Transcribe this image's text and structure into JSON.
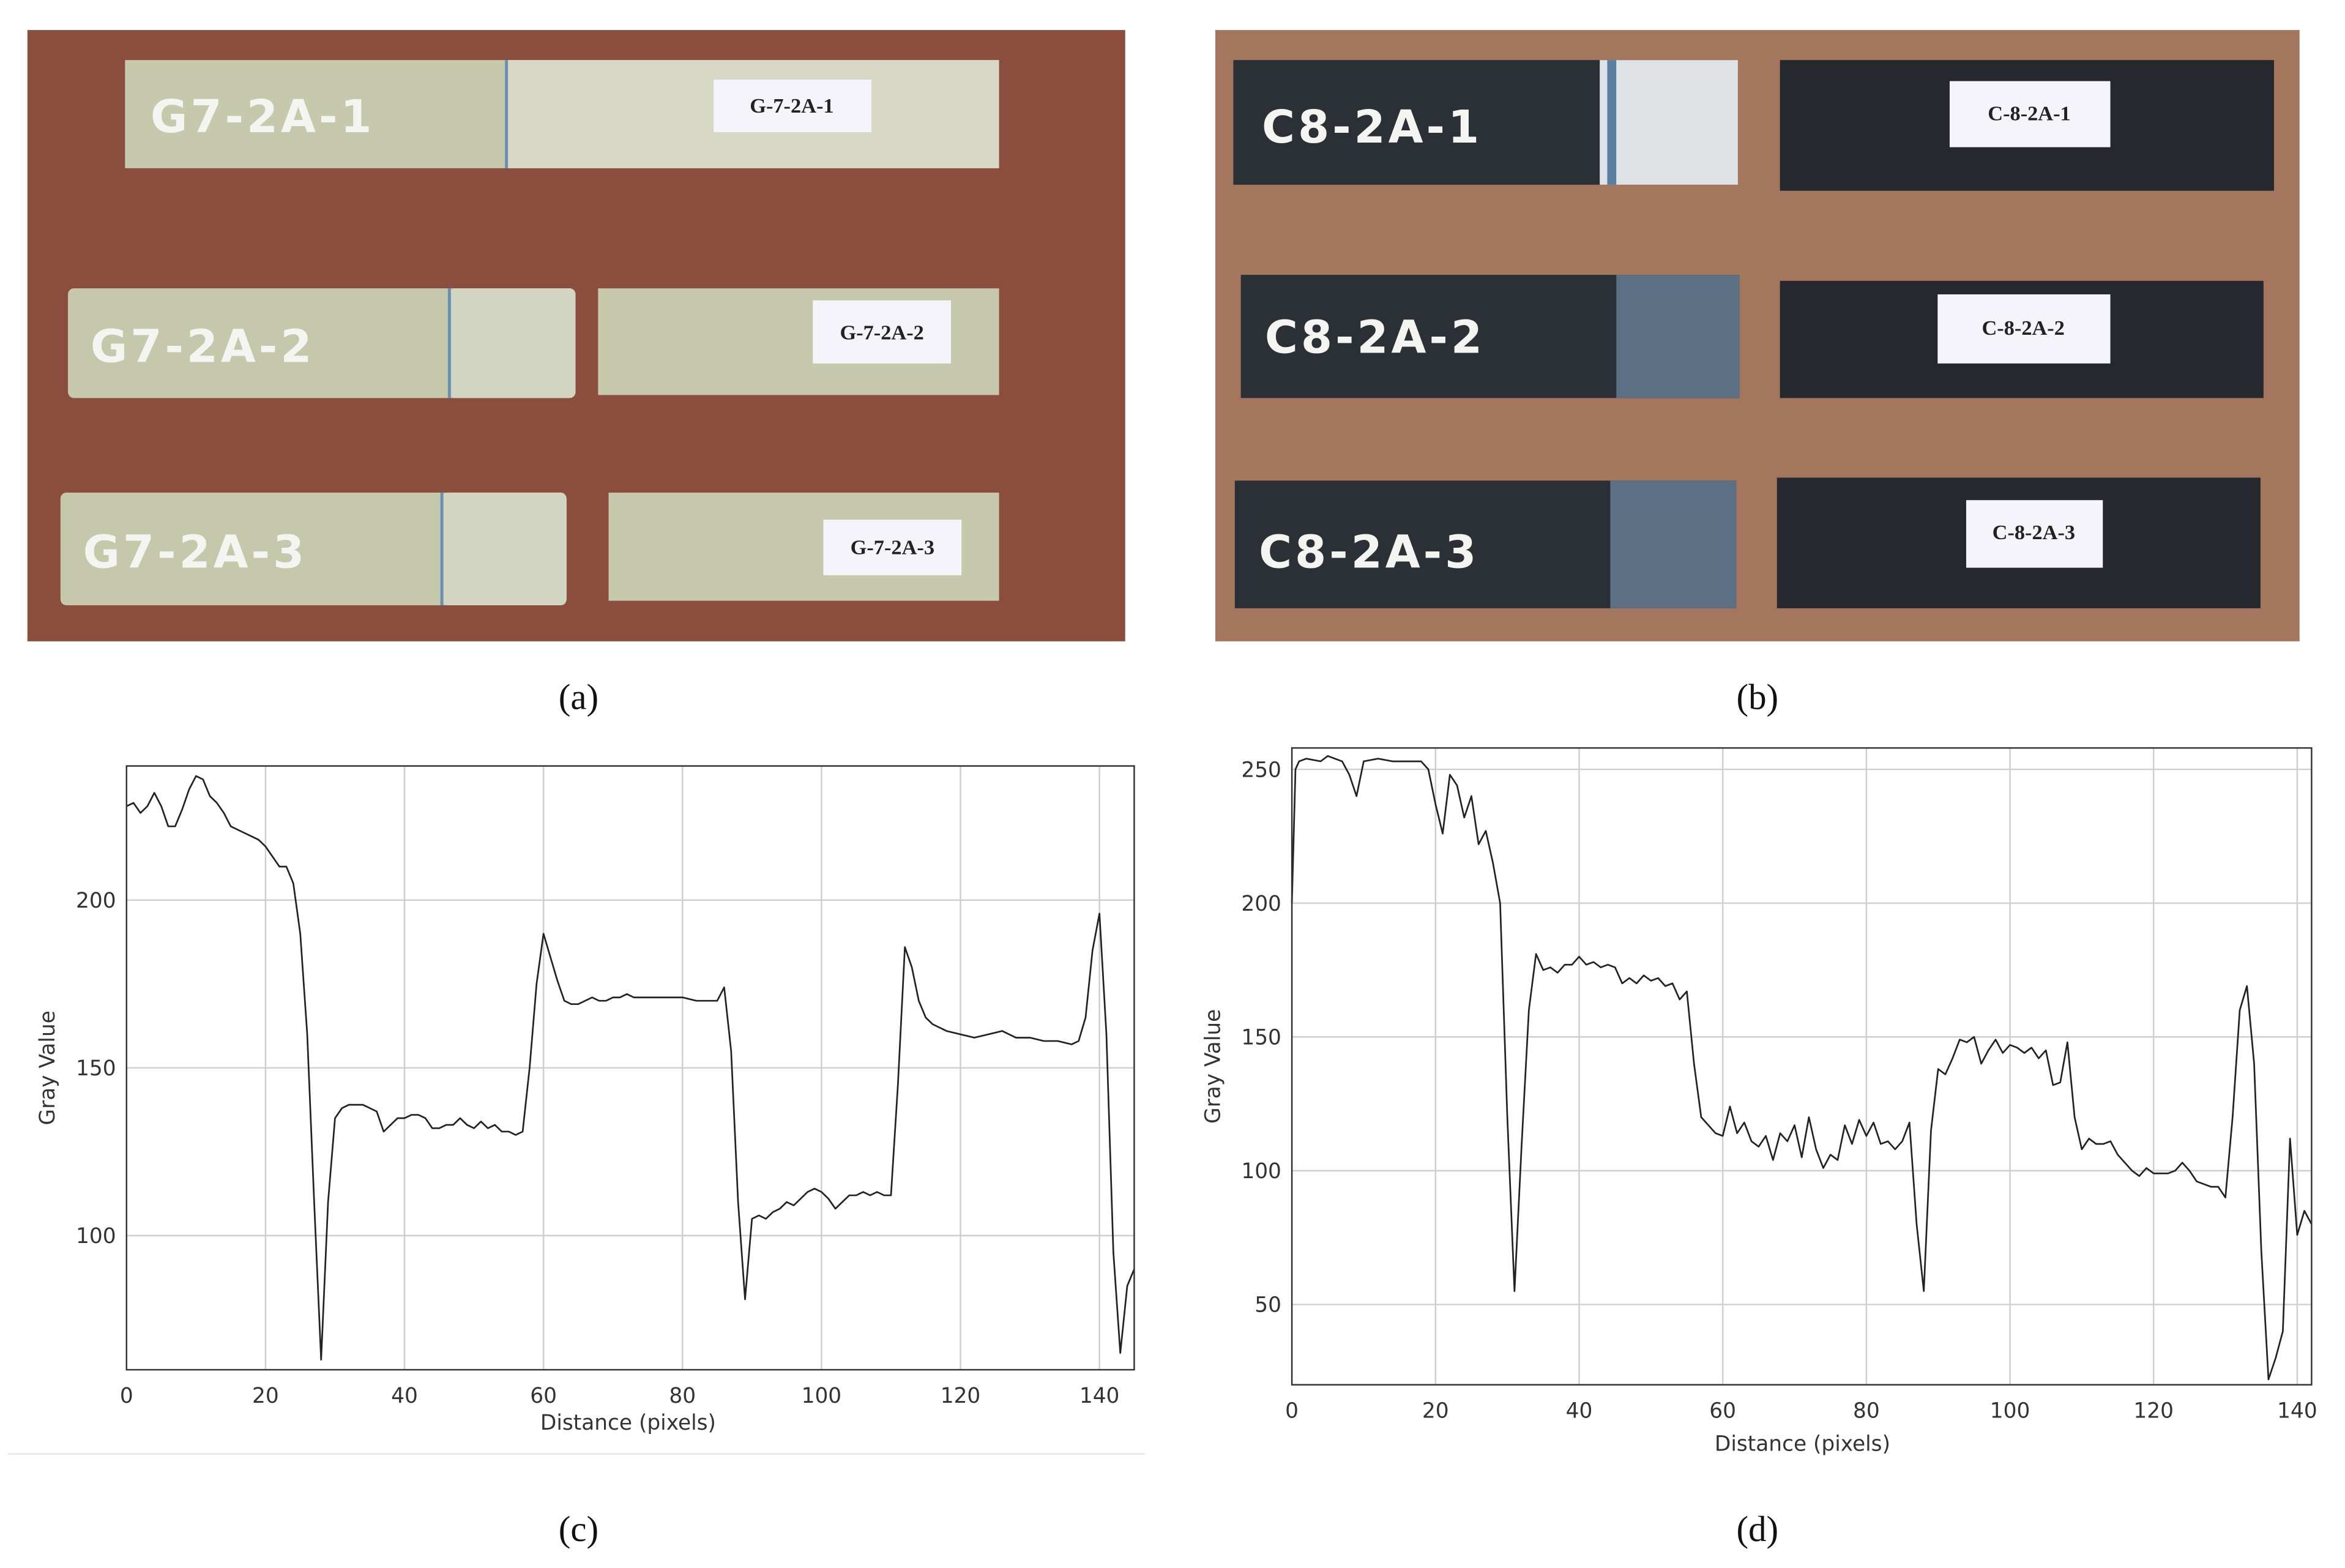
{
  "photo_a": {
    "markings": [
      "G7-2A-1",
      "G7-2A-2",
      "G7-2A-3"
    ],
    "labels": [
      "G-7-2A-1",
      "G-7-2A-2",
      "G-7-2A-3"
    ]
  },
  "photo_b": {
    "markings": [
      "C8-2A-1",
      "C8-2A-2",
      "C8-2A-3"
    ],
    "labels": [
      "C-8-2A-1",
      "C-8-2A-2",
      "C-8-2A-3"
    ]
  },
  "captions": [
    "(a)",
    "(b)",
    "(c)",
    "(d)"
  ],
  "chart_data": [
    {
      "type": "line",
      "xlabel": "Distance (pixels)",
      "ylabel": "Gray Value",
      "xlim": [
        0,
        145
      ],
      "ylim": [
        60,
        240
      ],
      "xticks": [
        0,
        20,
        40,
        60,
        80,
        100,
        120,
        140
      ],
      "yticks": [
        100,
        150,
        200
      ],
      "grid": true,
      "series": [
        {
          "color": "#222222",
          "x": [
            0,
            1,
            2,
            3,
            4,
            5,
            6,
            7,
            8,
            9,
            10,
            11,
            12,
            13,
            14,
            15,
            16,
            17,
            18,
            19,
            20,
            21,
            22,
            23,
            24,
            25,
            26,
            27,
            28,
            29,
            30,
            31,
            32,
            33,
            34,
            35,
            36,
            37,
            38,
            39,
            40,
            41,
            42,
            43,
            44,
            45,
            46,
            47,
            48,
            49,
            50,
            51,
            52,
            53,
            54,
            55,
            56,
            57,
            58,
            59,
            60,
            61,
            62,
            63,
            64,
            65,
            66,
            67,
            68,
            69,
            70,
            71,
            72,
            73,
            75,
            78,
            80,
            82,
            85,
            86,
            87,
            88,
            89,
            90,
            91,
            92,
            93,
            94,
            95,
            96,
            97,
            98,
            99,
            100,
            101,
            102,
            103,
            104,
            105,
            106,
            107,
            108,
            109,
            110,
            111,
            112,
            113,
            114,
            115,
            116,
            117,
            118,
            120,
            122,
            124,
            126,
            128,
            130,
            132,
            134,
            136,
            137,
            138,
            139,
            140,
            141,
            142,
            143,
            144,
            145
          ],
          "values": [
            228,
            229,
            226,
            228,
            232,
            228,
            222,
            222,
            227,
            233,
            237,
            236,
            231,
            229,
            226,
            222,
            221,
            220,
            219,
            218,
            216,
            213,
            210,
            210,
            205,
            190,
            160,
            110,
            63,
            110,
            135,
            138,
            139,
            139,
            139,
            138,
            137,
            131,
            133,
            135,
            135,
            136,
            136,
            135,
            132,
            132,
            133,
            133,
            135,
            133,
            132,
            134,
            132,
            133,
            131,
            131,
            130,
            131,
            150,
            175,
            190,
            183,
            176,
            170,
            169,
            169,
            170,
            171,
            170,
            170,
            171,
            171,
            172,
            171,
            171,
            171,
            171,
            170,
            170,
            174,
            155,
            110,
            81,
            105,
            106,
            105,
            107,
            108,
            110,
            109,
            111,
            113,
            114,
            113,
            111,
            108,
            110,
            112,
            112,
            113,
            112,
            113,
            112,
            112,
            145,
            186,
            180,
            170,
            165,
            163,
            162,
            161,
            160,
            159,
            160,
            161,
            159,
            159,
            158,
            158,
            157,
            158,
            165,
            185,
            196,
            160,
            95,
            65,
            85,
            90
          ]
        }
      ]
    },
    {
      "type": "line",
      "xlabel": "Distance (pixels)",
      "ylabel": "Gray Value",
      "xlim": [
        0,
        142
      ],
      "ylim": [
        20,
        258
      ],
      "xticks": [
        0,
        20,
        40,
        60,
        80,
        100,
        120,
        140
      ],
      "yticks": [
        50,
        100,
        150,
        200,
        250
      ],
      "grid": true,
      "series": [
        {
          "color": "#222222",
          "x": [
            0,
            0.5,
            1,
            2,
            4,
            5,
            7,
            8,
            9,
            10,
            12,
            14,
            16,
            18,
            19,
            20,
            21,
            22,
            23,
            24,
            25,
            26,
            27,
            28,
            29,
            30,
            31,
            32,
            33,
            34,
            35,
            36,
            37,
            38,
            39,
            40,
            41,
            42,
            43,
            44,
            45,
            46,
            47,
            48,
            49,
            50,
            51,
            52,
            53,
            54,
            55,
            56,
            57,
            58,
            59,
            60,
            61,
            62,
            63,
            64,
            65,
            66,
            67,
            68,
            69,
            70,
            71,
            72,
            73,
            74,
            75,
            76,
            77,
            78,
            79,
            80,
            81,
            82,
            83,
            84,
            85,
            86,
            87,
            88,
            89,
            90,
            91,
            92,
            93,
            94,
            95,
            96,
            97,
            98,
            99,
            100,
            101,
            102,
            103,
            104,
            105,
            106,
            107,
            108,
            109,
            110,
            111,
            112,
            113,
            114,
            115,
            116,
            117,
            118,
            119,
            120,
            121,
            122,
            123,
            124,
            125,
            126,
            127,
            128,
            129,
            130,
            131,
            132,
            133,
            134,
            135,
            136,
            137,
            138,
            139,
            140,
            141,
            142
          ],
          "values": [
            200,
            250,
            253,
            254,
            253,
            255,
            253,
            248,
            240,
            253,
            254,
            253,
            253,
            253,
            250,
            237,
            226,
            248,
            244,
            232,
            240,
            222,
            227,
            215,
            200,
            120,
            55,
            110,
            160,
            181,
            175,
            176,
            174,
            177,
            177,
            180,
            177,
            178,
            176,
            177,
            176,
            170,
            172,
            170,
            173,
            171,
            172,
            169,
            170,
            164,
            167,
            140,
            120,
            117,
            114,
            113,
            124,
            114,
            118,
            111,
            109,
            113,
            104,
            114,
            111,
            117,
            105,
            120,
            108,
            101,
            106,
            104,
            117,
            110,
            119,
            113,
            118,
            110,
            111,
            108,
            111,
            118,
            80,
            55,
            115,
            138,
            136,
            142,
            149,
            148,
            150,
            140,
            145,
            149,
            144,
            147,
            146,
            144,
            146,
            142,
            145,
            132,
            133,
            148,
            120,
            108,
            112,
            110,
            110,
            111,
            106,
            103,
            100,
            98,
            101,
            99,
            99,
            99,
            100,
            103,
            100,
            96,
            95,
            94,
            94,
            90,
            120,
            160,
            169,
            140,
            70,
            22,
            30,
            40,
            112,
            76,
            85,
            80
          ]
        }
      ]
    }
  ]
}
